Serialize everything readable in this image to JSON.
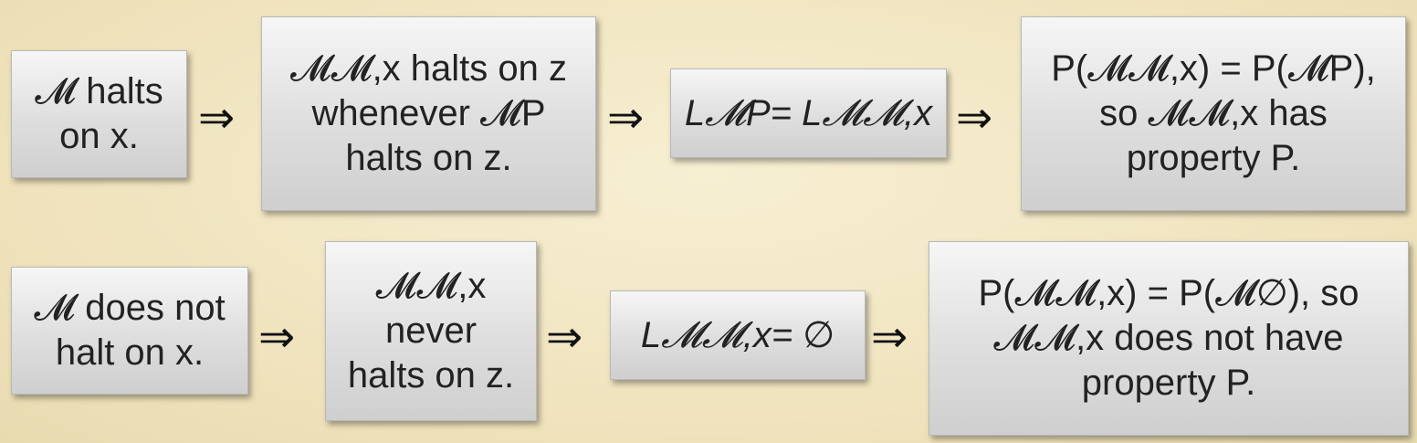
{
  "row1": {
    "box1": {
      "lines": [
        "𝓜 halts",
        "on x."
      ]
    },
    "box2": {
      "lines": [
        "𝓜𝓜,x halts on z",
        "whenever 𝓜P",
        "halts on z."
      ]
    },
    "box3": {
      "text": "L𝓜P= L𝓜𝓜,x"
    },
    "box4": {
      "lines": [
        "P(𝓜𝓜,x) = P(𝓜P),",
        "so 𝓜𝓜,x has",
        "property P."
      ]
    }
  },
  "row2": {
    "box1": {
      "lines": [
        "𝓜 does not",
        "halt on x."
      ]
    },
    "box2": {
      "lines": [
        "𝓜𝓜,x",
        "never",
        "halts on z."
      ]
    },
    "box3": {
      "text": "L𝓜𝓜,x= ∅"
    },
    "box4": {
      "lines": [
        "P(𝓜𝓜,x) = P(𝓜∅), so",
        "𝓜𝓜,x does not have",
        "property P."
      ]
    }
  },
  "arrow_symbol": "⇒",
  "colors": {
    "background": "#f2e7c4",
    "box_top": "#f6f6f6",
    "box_bottom": "#cfcfcf",
    "text": "#222222"
  }
}
